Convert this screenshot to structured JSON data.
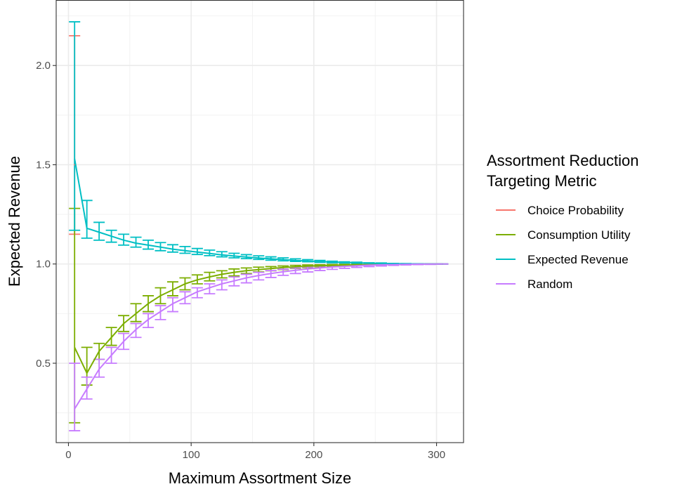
{
  "chart_data": {
    "type": "line",
    "xlabel": "Maximum Assortment Size",
    "ylabel": "Expected Revenue",
    "xlim": [
      -10,
      322
    ],
    "ylim": [
      0.1,
      2.33
    ],
    "x_ticks": [
      0,
      100,
      200,
      300
    ],
    "y_ticks": [
      0.5,
      1.0,
      1.5,
      2.0
    ],
    "x_tick_labels": [
      "0",
      "100",
      "200",
      "300"
    ],
    "y_tick_labels": [
      "0.5",
      "1.0",
      "1.5",
      "2.0"
    ],
    "grid": true,
    "legend": {
      "title": [
        "Assortment Reduction",
        "Targeting Metric"
      ],
      "position": "right"
    },
    "series": [
      {
        "name": "Choice Probability",
        "color": "#F8766D",
        "x": [
          5
        ],
        "y": [
          1.5
        ],
        "err_low": [
          1.15
        ],
        "err_high": [
          2.15
        ]
      },
      {
        "name": "Consumption Utility",
        "color": "#7CAE00",
        "x": [
          5,
          15,
          25,
          35,
          45,
          55,
          65,
          75,
          85,
          95,
          105,
          115,
          125,
          135,
          145,
          155,
          165,
          175,
          185,
          195,
          205,
          215,
          225,
          235,
          245,
          255,
          265,
          275,
          285,
          295,
          305
        ],
        "y": [
          0.58,
          0.45,
          0.56,
          0.63,
          0.7,
          0.75,
          0.8,
          0.84,
          0.87,
          0.9,
          0.92,
          0.935,
          0.948,
          0.958,
          0.966,
          0.972,
          0.977,
          0.982,
          0.986,
          0.989,
          0.991,
          0.993,
          0.995,
          0.996,
          0.997,
          0.998,
          0.9985,
          0.999,
          0.9995,
          0.9998,
          1.0
        ],
        "err_low": [
          0.2,
          0.39,
          0.52,
          0.59,
          0.66,
          0.71,
          0.76,
          0.8,
          0.84,
          0.87,
          0.9,
          0.915,
          0.93,
          0.94,
          0.952,
          0.96,
          0.966,
          0.972,
          0.978,
          0.982,
          0.986,
          0.989,
          0.992,
          0.994,
          0.995,
          0.996,
          0.997,
          0.998,
          0.999,
          0.9995,
          1.0
        ],
        "err_high": [
          1.28,
          0.58,
          0.6,
          0.68,
          0.74,
          0.8,
          0.84,
          0.88,
          0.91,
          0.93,
          0.945,
          0.958,
          0.966,
          0.975,
          0.98,
          0.984,
          0.987,
          0.99,
          0.993,
          0.995,
          0.996,
          0.997,
          0.998,
          0.998,
          0.999,
          0.999,
          0.9995,
          1.0,
          1.0,
          1.0,
          1.0
        ]
      },
      {
        "name": "Expected Revenue",
        "color": "#00BFC4",
        "x": [
          5,
          15,
          25,
          35,
          45,
          55,
          65,
          75,
          85,
          95,
          105,
          115,
          125,
          135,
          145,
          155,
          165,
          175,
          185,
          195,
          205,
          215,
          225,
          235,
          245,
          255,
          265,
          275,
          285,
          295,
          305
        ],
        "y": [
          1.53,
          1.18,
          1.16,
          1.14,
          1.12,
          1.105,
          1.095,
          1.085,
          1.075,
          1.067,
          1.06,
          1.053,
          1.046,
          1.04,
          1.035,
          1.03,
          1.026,
          1.022,
          1.018,
          1.015,
          1.012,
          1.01,
          1.008,
          1.006,
          1.004,
          1.003,
          1.002,
          1.001,
          1.0005,
          1.0002,
          1.0
        ],
        "err_low": [
          1.17,
          1.13,
          1.12,
          1.11,
          1.095,
          1.085,
          1.075,
          1.067,
          1.06,
          1.054,
          1.048,
          1.042,
          1.036,
          1.031,
          1.027,
          1.023,
          1.019,
          1.016,
          1.013,
          1.011,
          1.008,
          1.006,
          1.005,
          1.004,
          1.003,
          1.002,
          1.001,
          1.0005,
          1.0,
          1.0,
          1.0
        ],
        "err_high": [
          2.22,
          1.32,
          1.21,
          1.17,
          1.15,
          1.135,
          1.12,
          1.108,
          1.097,
          1.088,
          1.078,
          1.07,
          1.062,
          1.054,
          1.047,
          1.041,
          1.036,
          1.031,
          1.026,
          1.022,
          1.018,
          1.014,
          1.011,
          1.009,
          1.006,
          1.005,
          1.003,
          1.002,
          1.001,
          1.0005,
          1.0
        ]
      },
      {
        "name": "Random",
        "color": "#C77CFF",
        "x": [
          5,
          15,
          25,
          35,
          45,
          55,
          65,
          75,
          85,
          95,
          105,
          115,
          125,
          135,
          145,
          155,
          165,
          175,
          185,
          195,
          205,
          215,
          225,
          235,
          245,
          255,
          265,
          275,
          285,
          295,
          305
        ],
        "y": [
          0.27,
          0.37,
          0.47,
          0.54,
          0.61,
          0.67,
          0.72,
          0.76,
          0.8,
          0.83,
          0.86,
          0.88,
          0.9,
          0.915,
          0.93,
          0.942,
          0.952,
          0.961,
          0.968,
          0.975,
          0.98,
          0.985,
          0.988,
          0.991,
          0.994,
          0.996,
          0.997,
          0.998,
          0.999,
          0.9995,
          1.0
        ],
        "err_low": [
          0.16,
          0.32,
          0.43,
          0.5,
          0.57,
          0.63,
          0.68,
          0.72,
          0.76,
          0.8,
          0.83,
          0.85,
          0.87,
          0.89,
          0.905,
          0.92,
          0.932,
          0.943,
          0.952,
          0.96,
          0.967,
          0.973,
          0.978,
          0.983,
          0.987,
          0.99,
          0.993,
          0.995,
          0.997,
          0.998,
          1.0
        ],
        "err_high": [
          0.5,
          0.43,
          0.52,
          0.58,
          0.65,
          0.7,
          0.75,
          0.79,
          0.83,
          0.86,
          0.88,
          0.9,
          0.92,
          0.935,
          0.948,
          0.958,
          0.967,
          0.974,
          0.98,
          0.985,
          0.989,
          0.992,
          0.994,
          0.996,
          0.997,
          0.998,
          0.999,
          0.999,
          1.0,
          1.0,
          1.0
        ]
      }
    ]
  }
}
